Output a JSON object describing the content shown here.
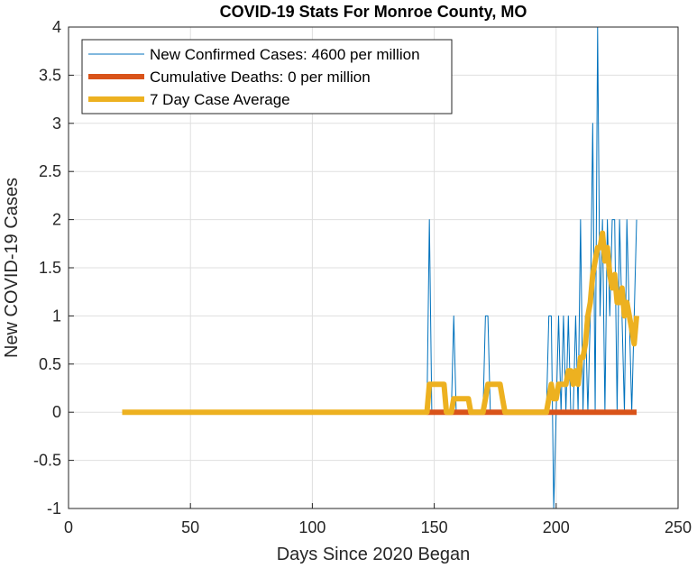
{
  "chart_data": {
    "type": "line",
    "title": "COVID-19 Stats For Monroe County, MO",
    "xlabel": "Days Since 2020 Began",
    "ylabel": "New COVID-19 Cases",
    "xlim": [
      0,
      250
    ],
    "ylim": [
      -1,
      4
    ],
    "x_ticks": [
      "0",
      "50",
      "100",
      "150",
      "200",
      "250"
    ],
    "y_ticks": [
      "4",
      "3.5",
      "3",
      "2.5",
      "2",
      "1.5",
      "1",
      "0.5",
      "0",
      "-0.5",
      "-1"
    ],
    "grid": true,
    "legend_position": "top-left",
    "series": [
      {
        "name": "New Confirmed Cases: 4600 per million",
        "color": "#0072BD",
        "points": [
          [
            22,
            0
          ],
          [
            147,
            0
          ],
          [
            148,
            2
          ],
          [
            149,
            0
          ],
          [
            157,
            0
          ],
          [
            158,
            1
          ],
          [
            159,
            0
          ],
          [
            170,
            0
          ],
          [
            171,
            1
          ],
          [
            172,
            1
          ],
          [
            173,
            0
          ],
          [
            196,
            0
          ],
          [
            197,
            1
          ],
          [
            198,
            1
          ],
          [
            199,
            -1
          ],
          [
            200,
            0
          ],
          [
            201,
            1
          ],
          [
            202,
            0
          ],
          [
            203,
            1
          ],
          [
            204,
            0
          ],
          [
            205,
            1
          ],
          [
            206,
            0
          ],
          [
            207,
            0
          ],
          [
            208,
            1
          ],
          [
            209,
            0
          ],
          [
            210,
            2
          ],
          [
            211,
            0
          ],
          [
            212,
            1
          ],
          [
            213,
            0
          ],
          [
            214,
            1
          ],
          [
            215,
            3
          ],
          [
            216,
            0
          ],
          [
            217,
            4
          ],
          [
            218,
            1
          ],
          [
            219,
            2
          ],
          [
            220,
            0
          ],
          [
            221,
            2
          ],
          [
            222,
            1
          ],
          [
            223,
            2
          ],
          [
            224,
            2
          ],
          [
            225,
            0
          ],
          [
            226,
            2
          ],
          [
            227,
            1
          ],
          [
            228,
            0
          ],
          [
            229,
            2
          ],
          [
            230,
            1
          ],
          [
            231,
            0
          ],
          [
            232,
            1
          ],
          [
            233,
            2
          ]
        ]
      },
      {
        "name": "Cumulative Deaths: 0 per million",
        "color": "#D95319",
        "points": [
          [
            147,
            0
          ],
          [
            233,
            0
          ]
        ]
      },
      {
        "name": "7 Day Case Average",
        "color": "#EDB120",
        "points": [
          [
            22,
            0
          ],
          [
            147,
            0
          ],
          [
            148,
            0.29
          ],
          [
            154,
            0.29
          ],
          [
            155,
            0
          ],
          [
            157,
            0
          ],
          [
            158,
            0.14
          ],
          [
            164,
            0.14
          ],
          [
            165,
            0
          ],
          [
            170,
            0
          ],
          [
            171,
            0.14
          ],
          [
            172,
            0.29
          ],
          [
            177,
            0.29
          ],
          [
            178,
            0.14
          ],
          [
            179,
            0
          ],
          [
            196,
            0
          ],
          [
            197,
            0.14
          ],
          [
            198,
            0.29
          ],
          [
            199,
            0.14
          ],
          [
            200,
            0.14
          ],
          [
            201,
            0.29
          ],
          [
            203,
            0.29
          ],
          [
            204,
            0.29
          ],
          [
            205,
            0.43
          ],
          [
            206,
            0.43
          ],
          [
            207,
            0.29
          ],
          [
            208,
            0.43
          ],
          [
            209,
            0.29
          ],
          [
            210,
            0.57
          ],
          [
            211,
            0.57
          ],
          [
            212,
            0.71
          ],
          [
            213,
            1.0
          ],
          [
            214,
            1.14
          ],
          [
            215,
            1.43
          ],
          [
            216,
            1.57
          ],
          [
            217,
            1.71
          ],
          [
            218,
            1.71
          ],
          [
            219,
            1.86
          ],
          [
            220,
            1.57
          ],
          [
            221,
            1.71
          ],
          [
            222,
            1.43
          ],
          [
            223,
            1.29
          ],
          [
            224,
            1.43
          ],
          [
            225,
            1.14
          ],
          [
            226,
            1.14
          ],
          [
            227,
            1.29
          ],
          [
            228,
            1.0
          ],
          [
            229,
            1.14
          ],
          [
            230,
            1.0
          ],
          [
            231,
            0.86
          ],
          [
            232,
            0.71
          ],
          [
            233,
            1.0
          ]
        ]
      }
    ]
  }
}
